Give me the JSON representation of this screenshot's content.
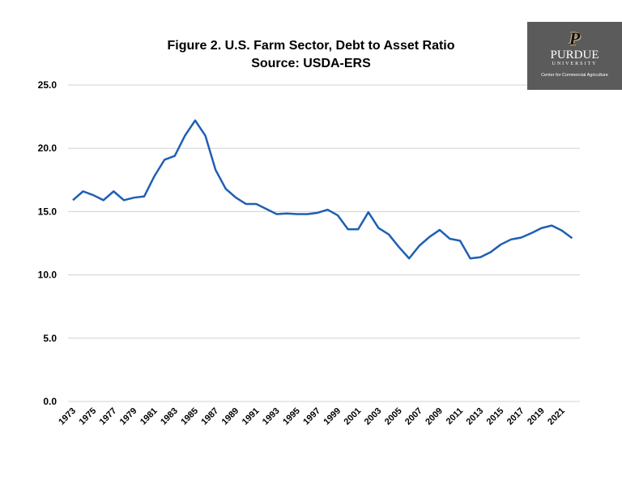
{
  "chart_data": {
    "type": "line",
    "title": "Figure 2. U.S. Farm Sector, Debt to Asset Ratio",
    "subtitle": "Source: USDA-ERS",
    "xlabel": "",
    "ylabel": "",
    "ylim": [
      0,
      25
    ],
    "yticks": [
      "0.0",
      "5.0",
      "10.0",
      "15.0",
      "20.0",
      "25.0"
    ],
    "grid": true,
    "line_color": "#1f5fb4",
    "x": [
      1973,
      1974,
      1975,
      1976,
      1977,
      1978,
      1979,
      1980,
      1981,
      1982,
      1983,
      1984,
      1985,
      1986,
      1987,
      1988,
      1989,
      1990,
      1991,
      1992,
      1993,
      1994,
      1995,
      1996,
      1997,
      1998,
      1999,
      2000,
      2001,
      2002,
      2003,
      2004,
      2005,
      2006,
      2007,
      2008,
      2009,
      2010,
      2011,
      2012,
      2013,
      2014,
      2015,
      2016,
      2017,
      2018,
      2019,
      2020,
      2021,
      2022
    ],
    "values": [
      15.9,
      16.6,
      16.3,
      15.9,
      16.6,
      15.9,
      16.1,
      16.2,
      17.8,
      19.1,
      19.4,
      21.0,
      22.2,
      21.0,
      18.3,
      16.8,
      16.1,
      15.6,
      15.6,
      15.2,
      14.8,
      14.85,
      14.8,
      14.8,
      14.9,
      15.15,
      14.7,
      13.6,
      13.6,
      14.95,
      13.7,
      13.2,
      12.2,
      11.3,
      12.3,
      13.0,
      13.55,
      12.85,
      12.7,
      11.3,
      11.4,
      11.8,
      12.4,
      12.8,
      12.95,
      13.3,
      13.7,
      13.9,
      13.5,
      12.9
    ],
    "xtick_labels": [
      "1973",
      "1975",
      "1977",
      "1979",
      "1981",
      "1983",
      "1985",
      "1987",
      "1989",
      "1991",
      "1993",
      "1995",
      "1997",
      "1999",
      "2001",
      "2003",
      "2005",
      "2007",
      "2009",
      "2011",
      "2013",
      "2015",
      "2017",
      "2019",
      "2021"
    ]
  },
  "logo": {
    "name": "PURDUE",
    "sub": "UNIVERSITY",
    "center": "Center for Commercial Agriculture"
  }
}
